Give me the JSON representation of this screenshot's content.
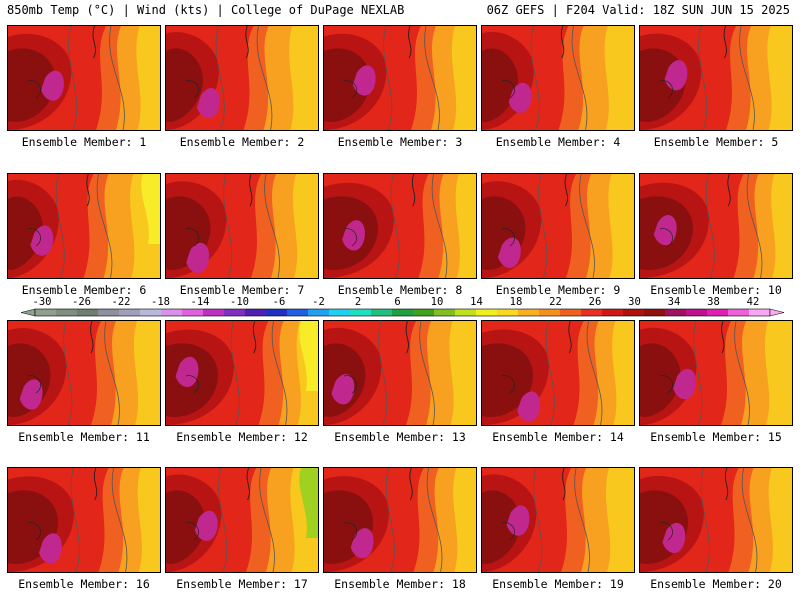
{
  "header": {
    "left_title": "850mb Temp (°C) | Wind (kts) | College of DuPage NEXLAB",
    "right_title": "06Z GEFS | F204 Valid: 18Z SUN JUN 15 2025"
  },
  "panel_caption_prefix": "Ensemble Member: ",
  "members": [
    {
      "label": "Ensemble Member: 1"
    },
    {
      "label": "Ensemble Member: 2"
    },
    {
      "label": "Ensemble Member: 3"
    },
    {
      "label": "Ensemble Member: 4"
    },
    {
      "label": "Ensemble Member: 5"
    },
    {
      "label": "Ensemble Member: 6"
    },
    {
      "label": "Ensemble Member: 7"
    },
    {
      "label": "Ensemble Member: 8"
    },
    {
      "label": "Ensemble Member: 9"
    },
    {
      "label": "Ensemble Member: 10"
    },
    {
      "label": "Ensemble Member: 11"
    },
    {
      "label": "Ensemble Member: 12"
    },
    {
      "label": "Ensemble Member: 13"
    },
    {
      "label": "Ensemble Member: 14"
    },
    {
      "label": "Ensemble Member: 15"
    },
    {
      "label": "Ensemble Member: 16"
    },
    {
      "label": "Ensemble Member: 17"
    },
    {
      "label": "Ensemble Member: 18"
    },
    {
      "label": "Ensemble Member: 19"
    },
    {
      "label": "Ensemble Member: 20"
    }
  ],
  "colorbar": {
    "labels": [
      "-30",
      "-26",
      "-22",
      "-18",
      "-14",
      "-10",
      "-6",
      "-2",
      "2",
      "6",
      "10",
      "14",
      "18",
      "22",
      "26",
      "30",
      "34",
      "38",
      "42"
    ],
    "colors": [
      "#8fa08f",
      "#7f8f7f",
      "#6f7f6f",
      "#8f8f9f",
      "#a0a0b8",
      "#b8b8d8",
      "#d890e8",
      "#e060e0",
      "#c030c0",
      "#8030c0",
      "#5020b0",
      "#2030c0",
      "#2060e0",
      "#20a0f0",
      "#20d0f0",
      "#20e0c0",
      "#20c080",
      "#20a040",
      "#40a020",
      "#80c020",
      "#c0e020",
      "#f0f020",
      "#f8d820",
      "#f8b020",
      "#f89020",
      "#f06020",
      "#e83020",
      "#d01818",
      "#b01010",
      "#901010",
      "#a01060",
      "#c01090",
      "#e020b0",
      "#f060d8",
      "#f8a8f0"
    ]
  },
  "map": {
    "colors": {
      "magenta": "#c02890",
      "maroon": "#8a1010",
      "dark_red": "#b81414",
      "red": "#e2261a",
      "orange_red": "#f06020",
      "orange": "#f8a020",
      "yellow_orange": "#f8c81e",
      "yellow": "#f8ec28",
      "green": "#a0d020",
      "contour": "#555555",
      "coast": "#222222"
    }
  }
}
